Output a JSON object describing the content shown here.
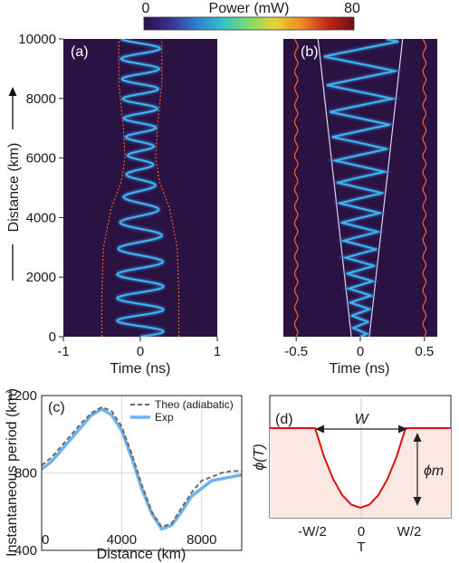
{
  "colorbar": {
    "label": "Power (mW)",
    "min_label": "0",
    "max_label": "80",
    "min": 0,
    "max": 80,
    "colormap": [
      "#2c0c4a",
      "#3b2f8f",
      "#2f7fcf",
      "#36c0c8",
      "#7fdc6a",
      "#e5d43a",
      "#f08a24",
      "#c0271b",
      "#6e0f12"
    ]
  },
  "shared": {
    "ylabel": "Distance (km)",
    "ytick_labels": [
      "0",
      "2000",
      "4000",
      "6000",
      "8000",
      "10000"
    ],
    "background": "#2a1242",
    "trace_color": "#39b6e6",
    "boundary_color": "#ff5a1f",
    "guide_color": "#d8d8ef"
  },
  "panel_a": {
    "tag": "(a)",
    "xlabel": "Time (ns)",
    "xtick_labels": [
      "-1",
      "0",
      "1"
    ]
  },
  "panel_b": {
    "tag": "(b)",
    "xlabel": "Time (ns)",
    "xtick_labels": [
      "-0.5",
      "0",
      "0.5"
    ]
  },
  "panel_c": {
    "tag": "(c)",
    "xlabel": "Distance (km)",
    "ylabel": "Instantaneous period (km)",
    "xtick_labels": [
      "0",
      "4000",
      "8000"
    ],
    "ytick_labels": [
      "400",
      "800",
      "1200"
    ],
    "legend": {
      "theo": "Theo (adiabatic)",
      "exp": "Exp"
    },
    "theo_color": "#6b6b6b",
    "exp_color": "#6db4ee"
  },
  "panel_d": {
    "tag": "(d)",
    "ylabel": "ϕ(T)",
    "width_label": "W",
    "phi_m_label": "ϕm",
    "xtick_labels": [
      "-W/2",
      "0",
      "W/2"
    ],
    "xlabel": "T",
    "curve_color": "#e01010",
    "fill_color": "#fbe8e2"
  },
  "chart_data": [
    {
      "type": "heatmap",
      "panel": "a",
      "xlabel": "Time (ns)",
      "ylabel": "Distance (km)",
      "xlim": [
        -1,
        1
      ],
      "ylim": [
        0,
        10000
      ],
      "zlim": [
        0,
        80
      ],
      "boundary_halfwidth_ns": {
        "x": [
          0,
          1500,
          3000,
          4300,
          5200,
          6000,
          7000,
          8500,
          10000
        ],
        "y": [
          0.5,
          0.5,
          0.48,
          0.38,
          0.25,
          0.2,
          0.22,
          0.28,
          0.28
        ]
      },
      "oscillation_amplitude_ns": {
        "x": [
          0,
          2000,
          3500,
          5000,
          6000,
          7500,
          10000
        ],
        "y": [
          0.3,
          0.3,
          0.28,
          0.2,
          0.16,
          0.22,
          0.26
        ]
      }
    },
    {
      "type": "heatmap",
      "panel": "b",
      "xlabel": "Time (ns)",
      "ylabel": "Distance (km)",
      "xlim": [
        -0.6,
        0.6
      ],
      "ylim": [
        0,
        10000
      ],
      "zlim": [
        0,
        80
      ],
      "boundary_t_ns": [
        -0.5,
        0.5
      ],
      "oscillation_amplitude_ns": {
        "x": [
          0,
          10000
        ],
        "y": [
          0.05,
          0.3
        ]
      }
    },
    {
      "type": "line",
      "panel": "c",
      "xlabel": "Distance (km)",
      "ylabel": "Instantaneous period (km)",
      "xlim": [
        0,
        10000
      ],
      "ylim": [
        400,
        1200
      ],
      "series": [
        {
          "name": "Theo (adiabatic)",
          "x": [
            0,
            500,
            1000,
            1500,
            2000,
            2500,
            3000,
            3500,
            4000,
            4500,
            5000,
            5500,
            6000,
            6500,
            7000,
            7500,
            8000,
            8500,
            9000,
            9500,
            10000
          ],
          "y": [
            840,
            880,
            940,
            1000,
            1060,
            1110,
            1140,
            1120,
            1040,
            900,
            740,
            600,
            520,
            540,
            620,
            700,
            760,
            780,
            800,
            810,
            810
          ]
        },
        {
          "name": "Exp",
          "x": [
            0,
            500,
            1000,
            1500,
            2000,
            2500,
            3000,
            3500,
            4000,
            4500,
            5000,
            5500,
            6000,
            6500,
            7000,
            7500,
            8000,
            8500,
            9000,
            9500,
            10000
          ],
          "y": [
            820,
            860,
            920,
            980,
            1040,
            1100,
            1130,
            1100,
            1020,
            880,
            720,
            590,
            510,
            530,
            600,
            680,
            720,
            760,
            770,
            780,
            790
          ]
        }
      ]
    },
    {
      "type": "line",
      "panel": "d",
      "xlabel": "T",
      "ylabel": "ϕ(T)",
      "xlim": [
        -1,
        1
      ],
      "ylim": [
        0,
        1.2
      ],
      "series": [
        {
          "x": [
            -1,
            -0.5,
            -0.4,
            -0.3,
            -0.2,
            -0.1,
            0,
            0.1,
            0.2,
            0.3,
            0.4,
            0.5,
            1
          ],
          "y": [
            1,
            1,
            0.64,
            0.36,
            0.16,
            0.04,
            0,
            0.04,
            0.16,
            0.36,
            0.64,
            1,
            1
          ]
        }
      ]
    }
  ]
}
